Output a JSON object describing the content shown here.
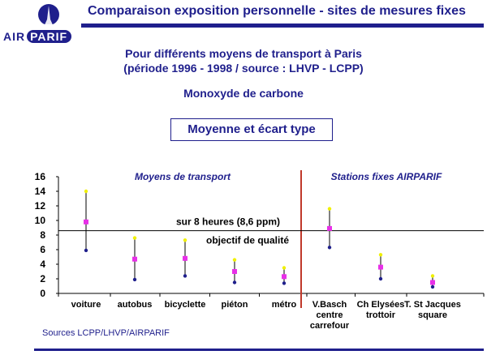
{
  "header": {
    "title": "Comparaison exposition personnelle - sites de mesures fixes",
    "logo_text_left": "AIR",
    "logo_text_right": "PARIF"
  },
  "subtitle": {
    "line1": "Pour différents moyens de transport à Paris",
    "line2": "(période 1996 - 1998 / source : LHVP - LCPP)",
    "pollutant": "Monoxyde de carbone"
  },
  "box_label": "Moyenne et écart type",
  "sources": "Sources  LCPP/LHVP/AIRPARIF",
  "colors": {
    "brand": "#1f1f8c",
    "mean_marker": "#e830e8",
    "upper_marker": "#f0f000",
    "divider": "#c0392b"
  },
  "chart_data": {
    "type": "scatter",
    "y_ticks": [
      "0",
      "2",
      "4",
      "6",
      "8",
      "10",
      "12",
      "14",
      "16"
    ],
    "ylim": [
      0,
      16
    ],
    "groups": [
      "Moyens de transport",
      "Stations fixes AIRPARIF"
    ],
    "categories": [
      [
        "voiture"
      ],
      [
        "autobus"
      ],
      [
        "bicyclette"
      ],
      [
        "piéton"
      ],
      [
        "métro"
      ],
      [
        "V.Basch",
        "centre",
        "carrefour"
      ],
      [
        "Ch  Elysées",
        "trottoir"
      ],
      [
        "T. St Jacques",
        "square"
      ]
    ],
    "series": [
      {
        "values": [
          9.8,
          4.7,
          4.8,
          3.0,
          2.3,
          8.9,
          3.6,
          1.5
        ]
      },
      {
        "values": [
          14.0,
          7.6,
          7.3,
          4.6,
          3.5,
          11.6,
          5.3,
          2.4
        ]
      },
      {
        "values": [
          5.9,
          1.9,
          2.4,
          1.5,
          1.4,
          6.3,
          2.0,
          0.9
        ]
      }
    ],
    "reference_lines": [
      {
        "value": 8.6,
        "label": "sur 8 heures (8,6 ppm)",
        "sublabel": "objectif de qualité"
      }
    ]
  }
}
